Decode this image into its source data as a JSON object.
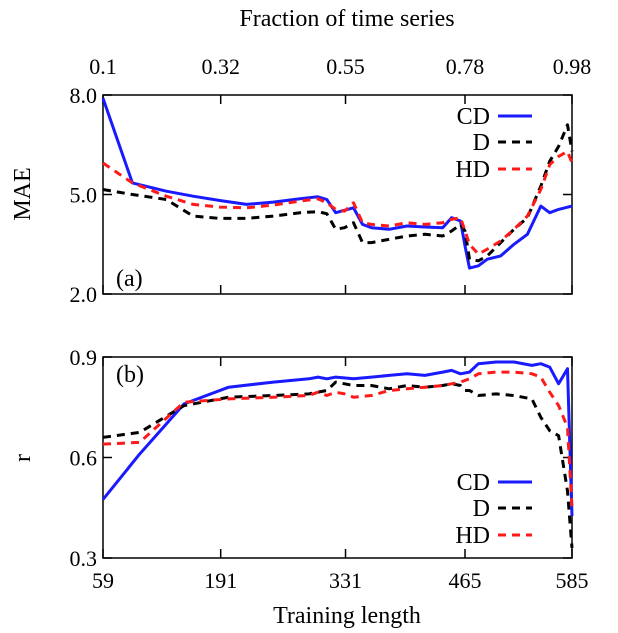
{
  "chart_data": [
    {
      "type": "line",
      "panel_label": "(a)",
      "xlabel": "",
      "ylabel": "MAE",
      "top_axis": {
        "label": "Fraction of time series",
        "ticks": [
          "0.1",
          "0.32",
          "0.55",
          "0.78",
          "0.98"
        ],
        "tick_positions": [
          59,
          191,
          331,
          465,
          585
        ]
      },
      "xlim": [
        59,
        585
      ],
      "ylim": [
        2.0,
        8.0
      ],
      "yticks": [
        "2.0",
        "5.0",
        "8.0"
      ],
      "ytick_values": [
        2.0,
        5.0,
        8.0
      ],
      "legend_position": "top-right",
      "series": [
        {
          "name": "CD",
          "color": "#1a1aff",
          "style": "solid",
          "x": [
            59,
            92,
            130,
            160,
            190,
            220,
            250,
            280,
            300,
            310,
            320,
            340,
            350,
            360,
            380,
            400,
            420,
            440,
            450,
            460,
            465,
            470,
            480,
            490,
            505,
            520,
            535,
            550,
            560,
            570,
            585
          ],
          "y": [
            7.9,
            5.35,
            5.1,
            4.95,
            4.82,
            4.7,
            4.77,
            4.87,
            4.93,
            4.85,
            4.45,
            4.6,
            4.1,
            4.0,
            3.95,
            4.05,
            4.02,
            4.0,
            4.3,
            4.2,
            3.45,
            2.78,
            2.85,
            3.05,
            3.15,
            3.5,
            3.8,
            4.65,
            4.45,
            4.55,
            4.65
          ]
        },
        {
          "name": "D",
          "color": "#000000",
          "style": "dashed",
          "x": [
            59,
            92,
            130,
            160,
            190,
            220,
            250,
            280,
            300,
            310,
            320,
            330,
            340,
            350,
            360,
            380,
            400,
            420,
            440,
            450,
            460,
            465,
            470,
            480,
            490,
            505,
            520,
            535,
            550,
            560,
            570,
            580,
            585
          ],
          "y": [
            5.15,
            5.0,
            4.85,
            4.35,
            4.28,
            4.28,
            4.35,
            4.45,
            4.48,
            4.42,
            3.95,
            4.0,
            4.15,
            3.55,
            3.55,
            3.65,
            3.75,
            3.8,
            3.75,
            3.9,
            4.1,
            3.9,
            3.05,
            3.0,
            3.15,
            3.55,
            3.95,
            4.3,
            5.25,
            6.0,
            6.45,
            7.1,
            6.3
          ]
        },
        {
          "name": "HD",
          "color": "#ff1a1a",
          "style": "dashed",
          "x": [
            59,
            92,
            130,
            160,
            190,
            220,
            250,
            280,
            300,
            310,
            320,
            330,
            340,
            350,
            360,
            380,
            400,
            420,
            440,
            450,
            460,
            465,
            470,
            480,
            490,
            505,
            520,
            535,
            550,
            560,
            570,
            580,
            585
          ],
          "y": [
            5.95,
            5.35,
            4.95,
            4.7,
            4.62,
            4.6,
            4.68,
            4.8,
            4.87,
            4.75,
            4.55,
            4.5,
            4.75,
            4.15,
            4.1,
            4.05,
            4.15,
            4.1,
            4.15,
            4.25,
            4.3,
            3.9,
            3.5,
            3.2,
            3.35,
            3.6,
            3.95,
            4.35,
            5.15,
            5.9,
            6.15,
            6.3,
            5.95
          ]
        }
      ]
    },
    {
      "type": "line",
      "panel_label": "(b)",
      "xlabel": "Training length",
      "ylabel": "r",
      "xlim": [
        59,
        585
      ],
      "xticks": [
        "59",
        "191",
        "331",
        "465",
        "585"
      ],
      "xtick_values": [
        59,
        191,
        331,
        465,
        585
      ],
      "ylim": [
        0.3,
        0.9
      ],
      "yticks": [
        "0.3",
        "0.6",
        "0.9"
      ],
      "ytick_values": [
        0.3,
        0.6,
        0.9
      ],
      "legend_position": "bottom-right",
      "series": [
        {
          "name": "CD",
          "color": "#1a1aff",
          "style": "solid",
          "x": [
            59,
            100,
            150,
            200,
            250,
            290,
            300,
            310,
            320,
            340,
            360,
            380,
            400,
            420,
            440,
            450,
            460,
            470,
            480,
            500,
            520,
            540,
            550,
            560,
            570,
            580,
            585
          ],
          "y": [
            0.475,
            0.61,
            0.76,
            0.81,
            0.825,
            0.835,
            0.84,
            0.835,
            0.84,
            0.835,
            0.84,
            0.845,
            0.85,
            0.845,
            0.855,
            0.86,
            0.85,
            0.855,
            0.88,
            0.885,
            0.885,
            0.875,
            0.88,
            0.87,
            0.82,
            0.865,
            0.425
          ]
        },
        {
          "name": "D",
          "color": "#000000",
          "style": "dashed",
          "x": [
            59,
            100,
            150,
            200,
            250,
            290,
            300,
            310,
            320,
            330,
            340,
            360,
            380,
            400,
            420,
            440,
            450,
            460,
            465,
            470,
            480,
            500,
            520,
            540,
            550,
            560,
            570,
            580,
            585
          ],
          "y": [
            0.66,
            0.675,
            0.755,
            0.78,
            0.785,
            0.79,
            0.795,
            0.8,
            0.825,
            0.82,
            0.815,
            0.815,
            0.805,
            0.815,
            0.81,
            0.815,
            0.82,
            0.815,
            0.8,
            0.8,
            0.785,
            0.79,
            0.785,
            0.775,
            0.72,
            0.68,
            0.665,
            0.5,
            0.33
          ]
        },
        {
          "name": "HD",
          "color": "#ff1a1a",
          "style": "dashed",
          "x": [
            59,
            100,
            150,
            200,
            250,
            290,
            300,
            310,
            320,
            330,
            340,
            360,
            380,
            400,
            420,
            440,
            450,
            460,
            470,
            480,
            500,
            520,
            540,
            550,
            560,
            570,
            580,
            585
          ],
          "y": [
            0.64,
            0.645,
            0.765,
            0.775,
            0.78,
            0.785,
            0.795,
            0.785,
            0.795,
            0.79,
            0.78,
            0.785,
            0.8,
            0.805,
            0.81,
            0.815,
            0.82,
            0.825,
            0.835,
            0.85,
            0.855,
            0.855,
            0.85,
            0.84,
            0.795,
            0.755,
            0.69,
            0.45
          ]
        }
      ]
    }
  ]
}
